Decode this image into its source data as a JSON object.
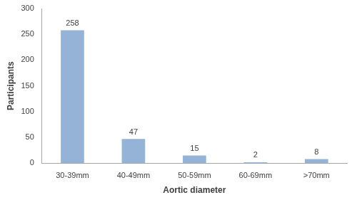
{
  "chart_data": {
    "type": "bar",
    "x_label": "Aortic diameter",
    "y_label": "Participants",
    "categories": [
      "30-39mm",
      "40-49mm",
      "50-59mm",
      "60-69mm",
      ">70mm"
    ],
    "values": [
      258,
      47,
      15,
      2,
      8
    ],
    "color": "#95b3d7",
    "ylim": [
      0,
      300
    ],
    "yticks": [
      0,
      50,
      100,
      150,
      200,
      250,
      300
    ],
    "grid": false,
    "data_labels": true
  }
}
